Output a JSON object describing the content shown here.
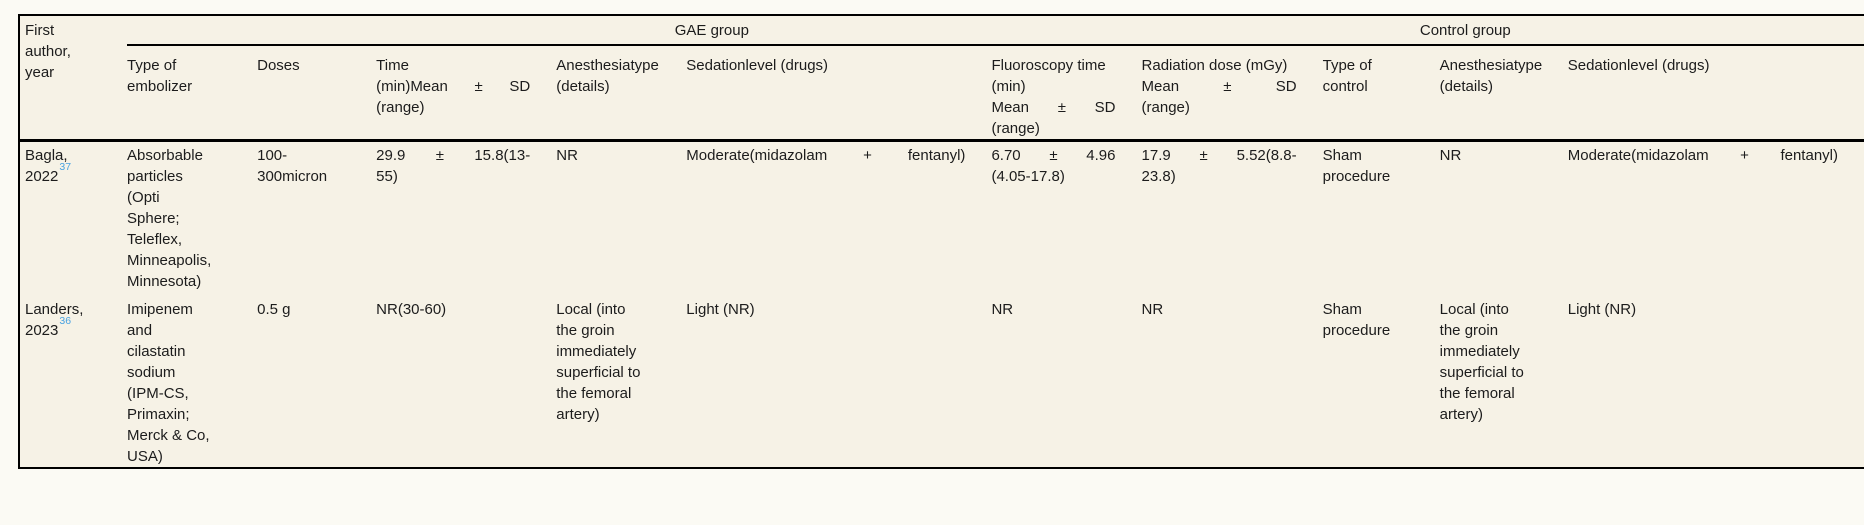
{
  "colors": {
    "page_bg": "#fbfaf4",
    "table_bg": "#f6f2e6",
    "rule": "#000000",
    "text": "#1c1c1c",
    "citation_blue": "#49a2e1"
  },
  "table": {
    "corner": [
      "First",
      "author,",
      "year"
    ],
    "groups": {
      "gae": "GAE group",
      "control": "Control group"
    },
    "columns": [
      {
        "key": "embolizer",
        "header": [
          "Type of",
          "embolizer"
        ]
      },
      {
        "key": "doses",
        "header": [
          "Doses"
        ]
      },
      {
        "key": "time",
        "header": [
          "Time",
          {
            "t": "(min)Mean ± SD",
            "j": true
          },
          "(range)"
        ]
      },
      {
        "key": "anesthesia",
        "header": [
          "Anesthesiatype",
          "(details)"
        ]
      },
      {
        "key": "sedation",
        "header": [
          "Sedationlevel (drugs)"
        ]
      },
      {
        "key": "fluoro",
        "header": [
          "Fluoroscopy time",
          "(min)",
          {
            "t": "Mean ± SD",
            "j": true
          },
          "(range)"
        ]
      },
      {
        "key": "radiation",
        "header": [
          "Radiation dose (mGy)",
          {
            "t": "Mean ± SD",
            "j": true
          },
          "(range)"
        ]
      },
      {
        "key": "control-type",
        "header": [
          "Type of",
          "control"
        ]
      },
      {
        "key": "control-anesthesia",
        "header": [
          "Anesthesiatype",
          "(details)"
        ]
      },
      {
        "key": "control-sedation",
        "header": [
          "Sedationlevel (drugs)"
        ]
      }
    ],
    "rows": [
      {
        "author": {
          "name": "Bagla,",
          "year": "2022",
          "ref": "37"
        },
        "cells": {
          "embolizer": [
            "Absorbable",
            "particles",
            "(Opti",
            "Sphere;",
            "Teleflex,",
            "Minneapolis,",
            "Minnesota)"
          ],
          "doses": [
            "100-",
            "300micron"
          ],
          "time": [
            {
              "t": "29.9 ± 15.8(13-",
              "j": true
            },
            "55)"
          ],
          "anesthesia": [
            "NR"
          ],
          "sedation": [
            {
              "t": "Moderate(midazolam + fentanyl)",
              "j": true
            }
          ],
          "fluoro": [
            {
              "t": "6.70 ± 4.96",
              "j": true
            },
            "(4.05-17.8)"
          ],
          "radiation": [
            {
              "t": "17.9 ± 5.52(8.8-",
              "j": true
            },
            "23.8)"
          ],
          "control-type": [
            "Sham",
            "procedure"
          ],
          "control-anesthesia": [
            "NR"
          ],
          "control-sedation": [
            {
              "t": "Moderate(midazolam + fentanyl)",
              "j": true
            }
          ]
        }
      },
      {
        "author": {
          "name": "Landers,",
          "year": "2023",
          "ref": "36"
        },
        "cells": {
          "embolizer": [
            "Imipenem",
            "and",
            "cilastatin",
            "sodium",
            "(IPM-CS,",
            "Primaxin;",
            "Merck & Co,",
            "USA)"
          ],
          "doses": [
            "0.5 g"
          ],
          "time": [
            "NR(30-60)"
          ],
          "anesthesia": [
            "Local (into",
            "the groin",
            "immediately",
            "superficial to",
            "the femoral",
            "artery)"
          ],
          "sedation": [
            "Light (NR)"
          ],
          "fluoro": [
            "NR"
          ],
          "radiation": [
            "NR"
          ],
          "control-type": [
            "Sham",
            "procedure"
          ],
          "control-anesthesia": [
            "Local (into",
            "the groin",
            "immediately",
            "superficial to",
            "the femoral",
            "artery)"
          ],
          "control-sedation": [
            "Light (NR)"
          ]
        }
      }
    ]
  }
}
